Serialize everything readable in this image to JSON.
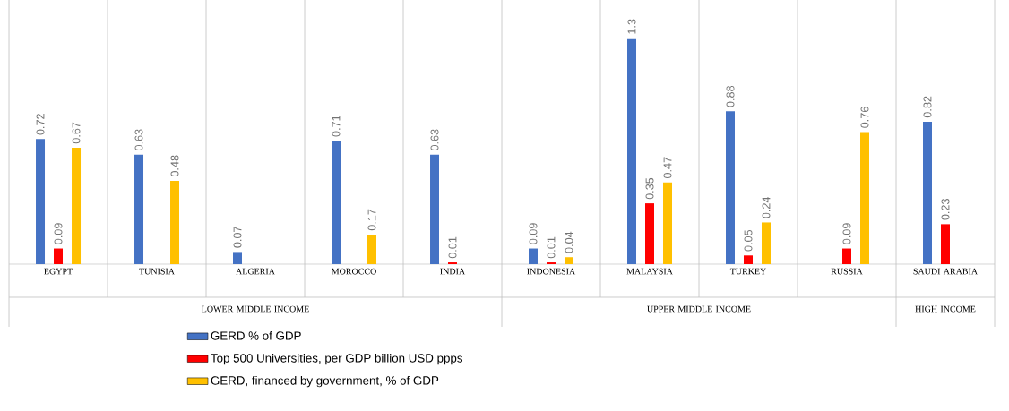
{
  "chart_data": {
    "type": "bar",
    "categories": [
      "EGYPT",
      "TUNISIA",
      "ALGERIA",
      "MOROCCO",
      "INDIA",
      "INDONESIA",
      "MALAYSIA",
      "TURKEY",
      "RUSSIA",
      "SAUDI ARABIA"
    ],
    "series": [
      {
        "name": "GERD % of GDP",
        "color": "#4472c4",
        "values": [
          0.72,
          0.63,
          0.07,
          0.71,
          0.63,
          0.09,
          1.3,
          0.88,
          null,
          0.82
        ]
      },
      {
        "name": "Top 500 Universities, per GDP billion USD ppps",
        "color": "#ff0000",
        "values": [
          0.09,
          null,
          null,
          null,
          0.01,
          0.01,
          0.35,
          0.05,
          0.09,
          0.23
        ]
      },
      {
        "name": "GERD, financed by government, % of GDP",
        "color": "#ffc000",
        "values": [
          0.67,
          0.48,
          null,
          0.17,
          null,
          0.04,
          0.47,
          0.24,
          0.76,
          null
        ]
      }
    ],
    "annotations": [
      "LOWER MIDDLE INCOME",
      "UPPER MIDDLE INCOME",
      "HIGH INCOME"
    ],
    "data_labels": true,
    "legend": "bottom"
  }
}
